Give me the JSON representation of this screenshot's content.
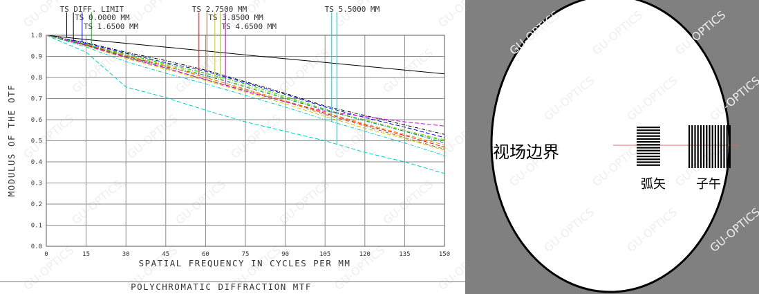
{
  "chart_data": {
    "type": "line",
    "title": "POLYCHROMATIC DIFFRACTION MTF",
    "xlabel": "SPATIAL FREQUENCY IN CYCLES PER MM",
    "ylabel": "MODULUS OF THE OTF",
    "xlim": [
      0,
      150
    ],
    "ylim": [
      0,
      1.0
    ],
    "x_ticks": [
      "0",
      "15",
      "30",
      "45",
      "60",
      "75",
      "90",
      "105",
      "120",
      "135",
      "150"
    ],
    "y_ticks": [
      "0.0",
      "0.1",
      "0.2",
      "0.3",
      "0.4",
      "0.5",
      "0.6",
      "0.7",
      "0.8",
      "0.9",
      "1.0"
    ],
    "grid": true,
    "legend": "top",
    "x": [
      0,
      15,
      30,
      45,
      60,
      75,
      90,
      105,
      120,
      135,
      150
    ],
    "series": [
      {
        "name": "TS DIFF. LIMIT",
        "color": "#000000",
        "freq_marker": 7.7,
        "values": [
          1.0,
          0.98,
          0.962,
          0.944,
          0.926,
          0.907,
          0.889,
          0.871,
          0.853,
          0.835,
          0.817
        ]
      },
      {
        "name": "TS 0.0000 MM",
        "color": "#000000",
        "freq_marker": 10.2,
        "values": [
          1.0,
          0.965,
          0.92,
          0.88,
          0.835,
          0.78,
          0.725,
          0.665,
          0.62,
          0.575,
          0.53
        ]
      },
      {
        "name": "TS 1.6500 MM",
        "color": "#0000ff",
        "freq_marker": 13.5,
        "values": [
          1.0,
          0.962,
          0.915,
          0.87,
          0.83,
          0.775,
          0.72,
          0.66,
          0.61,
          0.565,
          0.515
        ]
      },
      {
        "name": "TS 1.6500 MM",
        "color": "#00cc00",
        "freq_marker": 17.0,
        "values": [
          1.0,
          0.958,
          0.91,
          0.865,
          0.82,
          0.77,
          0.71,
          0.65,
          0.595,
          0.545,
          0.5
        ]
      },
      {
        "name": "TS 2.7500 MM",
        "color": "#ff0000",
        "freq_marker": 57.5,
        "values": [
          1.0,
          0.955,
          0.9,
          0.855,
          0.8,
          0.745,
          0.69,
          0.63,
          0.575,
          0.525,
          0.47
        ]
      },
      {
        "name": "TS 3.8500 MM",
        "color": "#996633",
        "freq_marker": 60.5,
        "values": [
          1.0,
          0.952,
          0.895,
          0.845,
          0.79,
          0.74,
          0.685,
          0.625,
          0.57,
          0.515,
          0.46
        ]
      },
      {
        "name": "TS 3.8500 MM",
        "color": "#cccc00",
        "freq_marker": 63.5,
        "values": [
          1.0,
          0.95,
          0.89,
          0.84,
          0.785,
          0.73,
          0.675,
          0.615,
          0.56,
          0.51,
          0.455
        ]
      },
      {
        "name": "TS 4.6500 MM",
        "color": "#99cc00",
        "freq_marker": 65.5,
        "values": [
          1.0,
          0.956,
          0.905,
          0.86,
          0.81,
          0.76,
          0.705,
          0.645,
          0.6,
          0.55,
          0.505
        ]
      },
      {
        "name": "TS 4.6500 MM",
        "color": "#cc00cc",
        "freq_marker": 67.5,
        "values": [
          1.0,
          0.952,
          0.895,
          0.845,
          0.79,
          0.735,
          0.685,
          0.64,
          0.615,
          0.59,
          0.57
        ]
      },
      {
        "name": "TS 5.5000 MM",
        "color": "#00cccc",
        "freq_marker": 107.5,
        "values": [
          1.0,
          0.945,
          0.875,
          0.82,
          0.77,
          0.715,
          0.66,
          0.6,
          0.545,
          0.49,
          0.43
        ]
      },
      {
        "name": "TS 5.5000 MM",
        "color": "#00cccc",
        "freq_marker": 109.5,
        "values": [
          1.0,
          0.92,
          0.755,
          0.705,
          0.645,
          0.59,
          0.545,
          0.5,
          0.445,
          0.4,
          0.345
        ]
      },
      {
        "name": "TS 4.6500 MM",
        "color": "#008888",
        "freq_marker": null,
        "values": [
          1.0,
          0.955,
          0.9,
          0.85,
          0.81,
          0.755,
          0.7,
          0.645,
          0.595,
          0.545,
          0.49
        ]
      },
      {
        "name": "TS 3.8500 MM",
        "color": "#ff8800",
        "freq_marker": null,
        "values": [
          1.0,
          0.958,
          0.905,
          0.855,
          0.8,
          0.745,
          0.69,
          0.635,
          0.58,
          0.53,
          0.48
        ]
      }
    ],
    "legend_labels": [
      {
        "text": "TS DIFF. LIMIT",
        "color": "#000000",
        "freq": 7.7
      },
      {
        "text": "TS 0.0000 MM",
        "color": "#000000",
        "freq": 10.2
      },
      {
        "text": "TS 1.6500 MM",
        "color": "#0000ff",
        "freq": 13.5
      },
      {
        "text": "TS 2.7500 MM",
        "color": "#ff0000",
        "freq": 57.5
      },
      {
        "text": "TS 3.8500 MM",
        "color": "#996633",
        "freq": 60.5
      },
      {
        "text": "TS 4.6500 MM",
        "color": "#99cc00",
        "freq": 65.5
      },
      {
        "text": "TS 5.5000 MM",
        "color": "#00cccc",
        "freq": 107.5
      }
    ],
    "watermark": "GU-OPTICS"
  },
  "field_diagram": {
    "field_edge_label": "视场边界",
    "sagittal_label": "弧矢",
    "tangential_label": "子午",
    "colors": {
      "background": "#808080",
      "circle": "#ffffff",
      "bars": "#000000",
      "field_line": "#e06060"
    }
  }
}
